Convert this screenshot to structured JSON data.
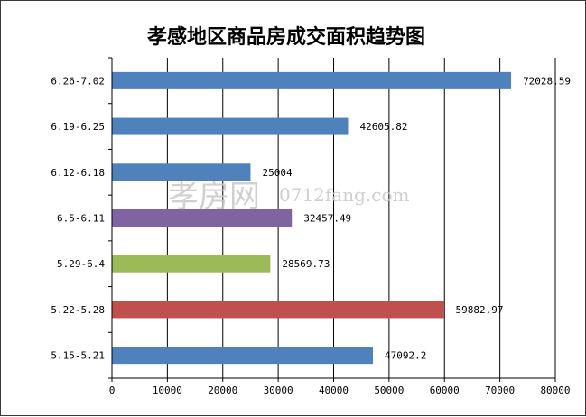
{
  "chart_data": {
    "type": "bar",
    "orientation": "horizontal",
    "title": "孝感地区商品房成交面积趋势图",
    "categories": [
      "5.15-5.21",
      "5.22-5.28",
      "5.29-6.4",
      "6.5-6.11",
      "6.12-6.18",
      "6.19-6.25",
      "6.26-7.02"
    ],
    "values": [
      47092.2,
      59882.97,
      28569.73,
      32457.49,
      25004,
      42605.82,
      72028.59
    ],
    "value_labels": [
      "47092.2",
      "59882.97",
      "28569.73",
      "32457.49",
      "25004",
      "42605.82",
      "72028.59"
    ],
    "colors": [
      "#4f81bd",
      "#c0504d",
      "#9bbb59",
      "#8064a2",
      "#4f81bd",
      "#4f81bd",
      "#4f81bd"
    ],
    "xlim": [
      0,
      80000
    ],
    "xticks": [
      0,
      10000,
      20000,
      30000,
      40000,
      50000,
      60000,
      70000,
      80000
    ],
    "xtick_labels": [
      "0",
      "10000",
      "20000",
      "30000",
      "40000",
      "50000",
      "60000",
      "70000",
      "80000"
    ],
    "grid": true,
    "xlabel": "",
    "ylabel": "",
    "legend": "none"
  },
  "watermark": {
    "logo_text": "孝房网",
    "url_text": "0712fang.com"
  }
}
